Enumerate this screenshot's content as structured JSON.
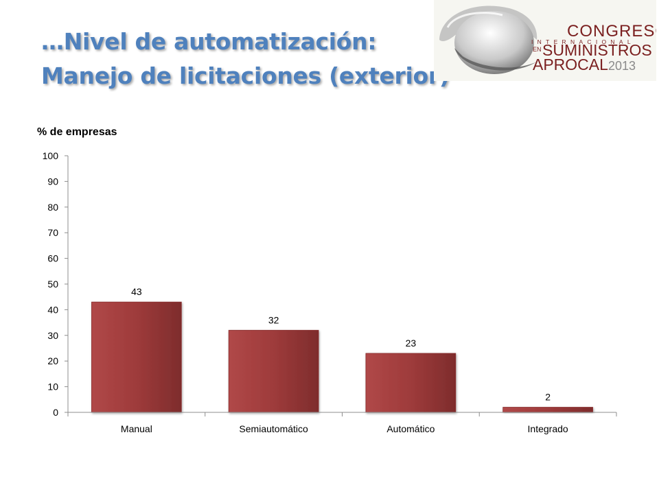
{
  "slide": {
    "title_line1": "…Nivel de automatización:",
    "title_line2": "Manejo de licitaciones (exterior)"
  },
  "logo": {
    "line1": "CONGRESO",
    "line2": "INTERNACIONAL",
    "line3a": "EN",
    "line3b": "SUMINISTROS",
    "line4a": "APROCAL",
    "line4b": "2013"
  },
  "chart_data": {
    "type": "bar",
    "ylabel": "% de empresas",
    "categories": [
      "Manual",
      "Semiautomático",
      "Automático",
      "Integrado"
    ],
    "values": [
      43,
      32,
      23,
      2
    ],
    "data_labels": [
      "43",
      "32",
      "23",
      "2"
    ],
    "ylim": [
      0,
      100
    ],
    "yticks": [
      0,
      10,
      20,
      30,
      40,
      50,
      60,
      70,
      80,
      90,
      100
    ],
    "grid": false,
    "legend": "none",
    "bar_color": "#9E3B3B"
  }
}
